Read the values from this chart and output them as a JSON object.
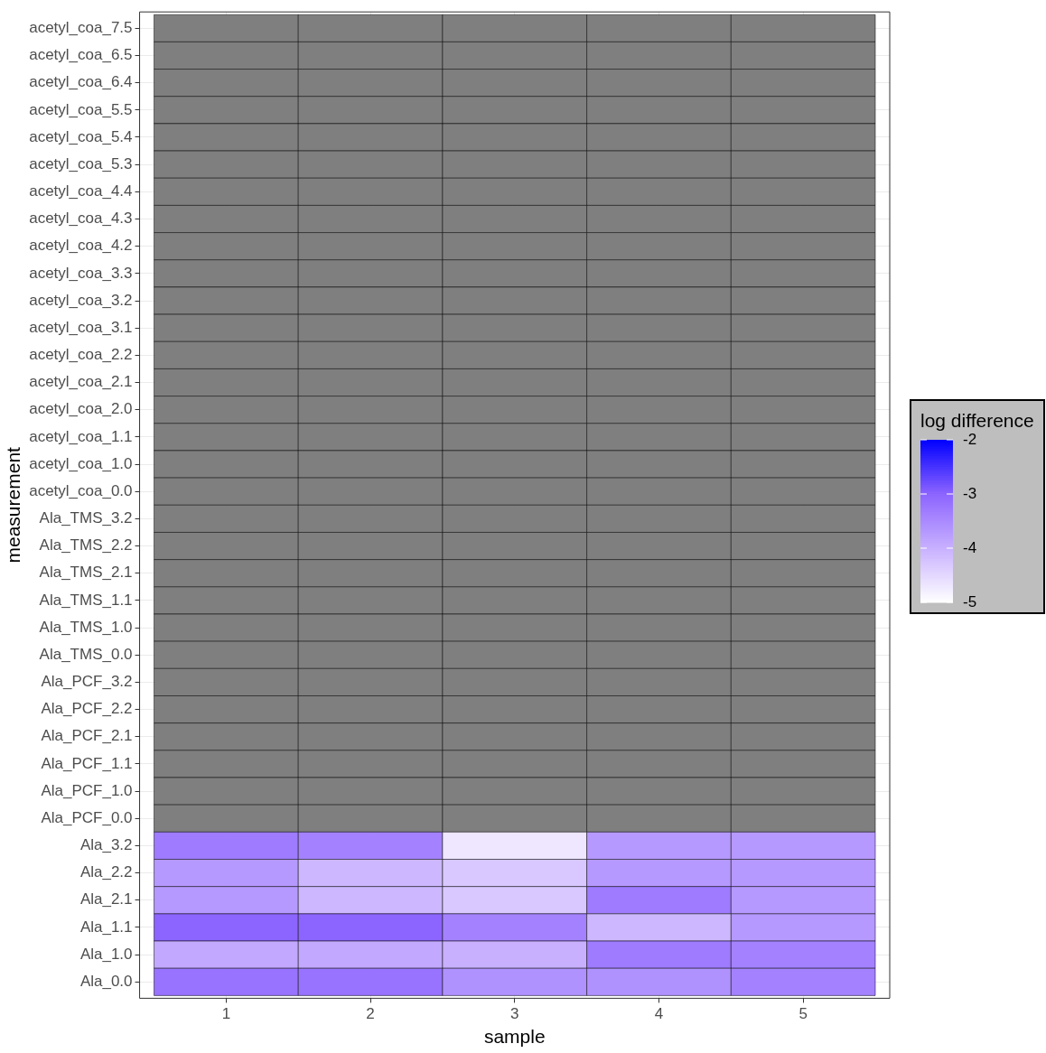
{
  "chart_data": {
    "type": "heatmap",
    "xlabel": "sample",
    "ylabel": "measurement",
    "clabel": "log difference",
    "categories": [
      "1",
      "2",
      "3",
      "4",
      "5"
    ],
    "y_categories": [
      "acetyl_coa_7.5",
      "acetyl_coa_6.5",
      "acetyl_coa_6.4",
      "acetyl_coa_5.5",
      "acetyl_coa_5.4",
      "acetyl_coa_5.3",
      "acetyl_coa_4.4",
      "acetyl_coa_4.3",
      "acetyl_coa_4.2",
      "acetyl_coa_3.3",
      "acetyl_coa_3.2",
      "acetyl_coa_3.1",
      "acetyl_coa_2.2",
      "acetyl_coa_2.1",
      "acetyl_coa_2.0",
      "acetyl_coa_1.1",
      "acetyl_coa_1.0",
      "acetyl_coa_0.0",
      "Ala_TMS_3.2",
      "Ala_TMS_2.2",
      "Ala_TMS_2.1",
      "Ala_TMS_1.1",
      "Ala_TMS_1.0",
      "Ala_TMS_0.0",
      "Ala_PCF_3.2",
      "Ala_PCF_2.2",
      "Ala_PCF_2.1",
      "Ala_PCF_1.1",
      "Ala_PCF_1.0",
      "Ala_PCF_0.0",
      "Ala_3.2",
      "Ala_2.2",
      "Ala_2.1",
      "Ala_1.1",
      "Ala_1.0",
      "Ala_0.0"
    ],
    "cells": [
      [
        null,
        null,
        null,
        null,
        null
      ],
      [
        null,
        null,
        null,
        null,
        null
      ],
      [
        null,
        null,
        null,
        null,
        null
      ],
      [
        null,
        null,
        null,
        null,
        null
      ],
      [
        null,
        null,
        null,
        null,
        null
      ],
      [
        null,
        null,
        null,
        null,
        null
      ],
      [
        null,
        null,
        null,
        null,
        null
      ],
      [
        null,
        null,
        null,
        null,
        null
      ],
      [
        null,
        null,
        null,
        null,
        null
      ],
      [
        null,
        null,
        null,
        null,
        null
      ],
      [
        null,
        null,
        null,
        null,
        null
      ],
      [
        null,
        null,
        null,
        null,
        null
      ],
      [
        null,
        null,
        null,
        null,
        null
      ],
      [
        null,
        null,
        null,
        null,
        null
      ],
      [
        null,
        null,
        null,
        null,
        null
      ],
      [
        null,
        null,
        null,
        null,
        null
      ],
      [
        null,
        null,
        null,
        null,
        null
      ],
      [
        null,
        null,
        null,
        null,
        null
      ],
      [
        null,
        null,
        null,
        null,
        null
      ],
      [
        null,
        null,
        null,
        null,
        null
      ],
      [
        null,
        null,
        null,
        null,
        null
      ],
      [
        null,
        null,
        null,
        null,
        null
      ],
      [
        null,
        null,
        null,
        null,
        null
      ],
      [
        null,
        null,
        null,
        null,
        null
      ],
      [
        null,
        null,
        null,
        null,
        null
      ],
      [
        null,
        null,
        null,
        null,
        null
      ],
      [
        null,
        null,
        null,
        null,
        null
      ],
      [
        null,
        null,
        null,
        null,
        null
      ],
      [
        null,
        null,
        null,
        null,
        null
      ],
      [
        null,
        null,
        null,
        null,
        null
      ],
      [
        -3.3,
        -3.4,
        -4.7,
        -3.7,
        -3.7
      ],
      [
        -3.7,
        -4.1,
        -4.3,
        -3.7,
        -3.7
      ],
      [
        -3.7,
        -4.1,
        -4.3,
        -3.3,
        -3.7
      ],
      [
        -3.0,
        -3.0,
        -3.4,
        -4.1,
        -3.7
      ],
      [
        -3.9,
        -3.9,
        -4.0,
        -3.3,
        -3.4
      ],
      [
        -3.2,
        -3.2,
        -3.6,
        -3.6,
        -3.4
      ]
    ],
    "clim": [
      -5,
      -2
    ],
    "cticks": [
      -2,
      -3,
      -4,
      -5
    ],
    "grid": true
  }
}
